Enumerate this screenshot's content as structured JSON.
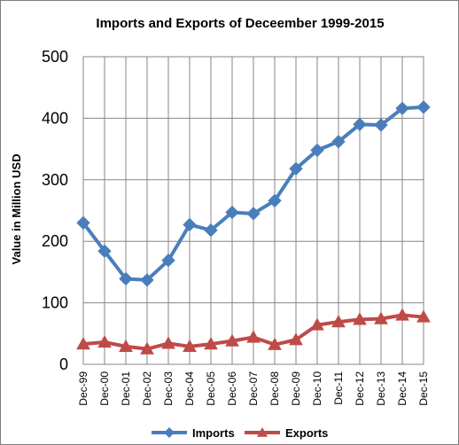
{
  "chart_data": {
    "type": "line",
    "title": "Imports and Exports of Deceember  1999-2015",
    "xlabel": "",
    "ylabel": "Value in  Million USD",
    "categories": [
      "Dec-99",
      "Dec-00",
      "Dec-01",
      "Dec-02",
      "Dec-03",
      "Dec-04",
      "Dec-05",
      "Dec-06",
      "Dec-07",
      "Dec-08",
      "Dec-09",
      "Dec-10",
      "Dec-11",
      "Dec-12",
      "Dec-13",
      "Dec-14",
      "Dec-15"
    ],
    "ylim": [
      0,
      500
    ],
    "yticks": [
      0,
      100,
      200,
      300,
      400,
      500
    ],
    "grid": true,
    "legend_position": "bottom",
    "series": [
      {
        "name": "Imports",
        "color": "#4a7ebb",
        "marker": "diamond",
        "values": [
          230,
          184,
          139,
          137,
          169,
          227,
          218,
          247,
          245,
          266,
          318,
          348,
          362,
          390,
          389,
          416,
          418
        ]
      },
      {
        "name": "Exports",
        "color": "#be4b48",
        "marker": "triangle",
        "values": [
          33,
          36,
          29,
          25,
          34,
          29,
          33,
          38,
          44,
          32,
          40,
          64,
          69,
          73,
          74,
          80,
          77
        ]
      }
    ]
  }
}
